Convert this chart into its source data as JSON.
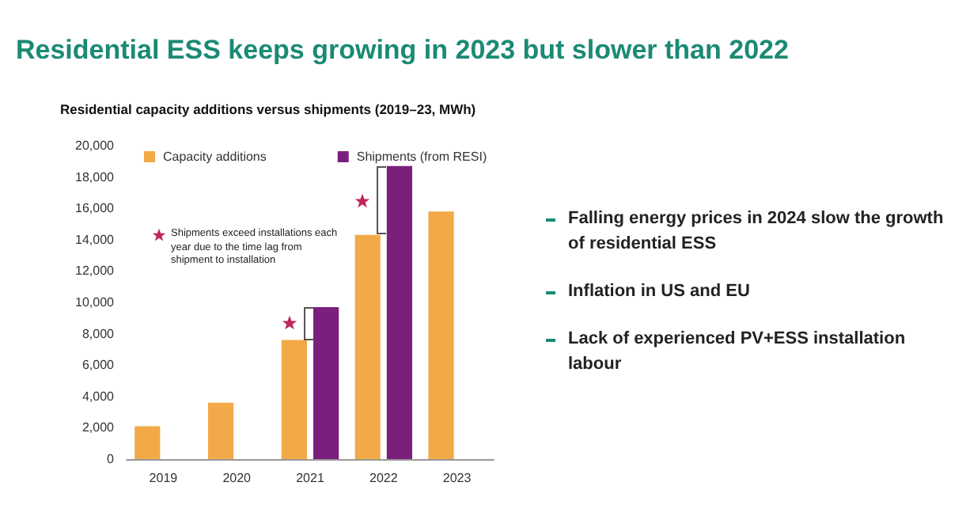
{
  "chart_data": {
    "type": "bar",
    "title": "Residential ESS keeps growing in 2023 but slower than 2022",
    "subtitle": "Residential capacity additions versus shipments (2019–23, MWh)",
    "categories": [
      "2019",
      "2020",
      "2021",
      "2022",
      "2023"
    ],
    "series": [
      {
        "name": "Capacity additions",
        "color": "#f2a947",
        "values": [
          2100,
          3600,
          7600,
          14300,
          15800
        ]
      },
      {
        "name": "Shipments (from RESI)",
        "color": "#7b1f7d",
        "values": [
          null,
          null,
          9700,
          18700,
          null
        ]
      }
    ],
    "ylim": [
      0,
      20000
    ],
    "yticks": [
      0,
      {
        "value": 2000,
        "label": "2,000"
      },
      {
        "value": 4000,
        "label": "4,000"
      },
      {
        "value": 6000,
        "label": "6,000"
      },
      {
        "value": 8000,
        "label": "8,000"
      },
      {
        "value": 10000,
        "label": "10,000"
      },
      {
        "value": 12000,
        "label": "12,000"
      },
      {
        "value": 14000,
        "label": "14,000"
      },
      {
        "value": 16000,
        "label": "16,000"
      },
      {
        "value": 18000,
        "label": "18,000"
      },
      {
        "value": 20000,
        "label": "20,000"
      }
    ],
    "grid": false,
    "legend": "top left",
    "annotations": [
      "Shipments exceed installations each year due to the time lag from shipment to installation",
      "Falling energy prices in 2024 slow the growth of residential ESS",
      "Inflation in US and EU",
      "Lack of experienced PV+ESS installation labour"
    ]
  }
}
